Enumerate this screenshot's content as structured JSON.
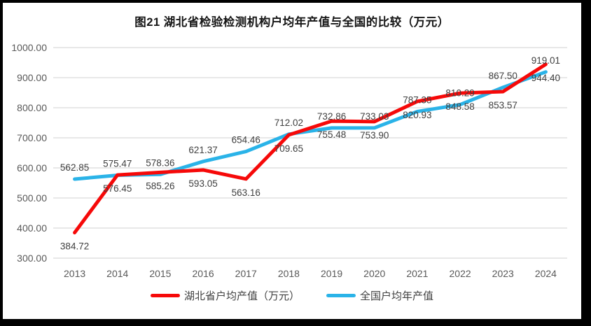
{
  "chart_data": {
    "type": "line",
    "title": "图21 湖北省检验检测机构户均年产值与全国的比较（万元）",
    "categories": [
      "2013",
      "2014",
      "2015",
      "2016",
      "2017",
      "2018",
      "2019",
      "2020",
      "2021",
      "2022",
      "2023",
      "2024"
    ],
    "series": [
      {
        "name": "湖北省户均产值（万元）",
        "color": "#f60909",
        "label_position": "below",
        "values": [
          384.72,
          576.45,
          585.26,
          593.05,
          563.16,
          709.65,
          755.48,
          753.9,
          820.93,
          848.58,
          853.57,
          944.4
        ]
      },
      {
        "name": "全国户均年产值",
        "color": "#2ab3e8",
        "label_position": "above",
        "values": [
          562.85,
          575.47,
          578.36,
          621.37,
          654.46,
          712.02,
          732.86,
          733.03,
          787.35,
          810.29,
          867.5,
          919.01
        ]
      }
    ],
    "xlabel": "",
    "ylabel": "",
    "ylim": [
      300,
      1000
    ],
    "ytick_step": 100,
    "ytick_labels": [
      "300.00",
      "400.00",
      "500.00",
      "600.00",
      "700.00",
      "800.00",
      "900.00",
      "1000.00"
    ],
    "value_decimals": 2,
    "grid": true,
    "legend_position": "bottom",
    "gridline_color": "#d9d9d9",
    "axis_text_color": "#595959",
    "data_label_color": "#3f3f3f",
    "background_color": "#ffffff",
    "frame_color": "#000000"
  }
}
